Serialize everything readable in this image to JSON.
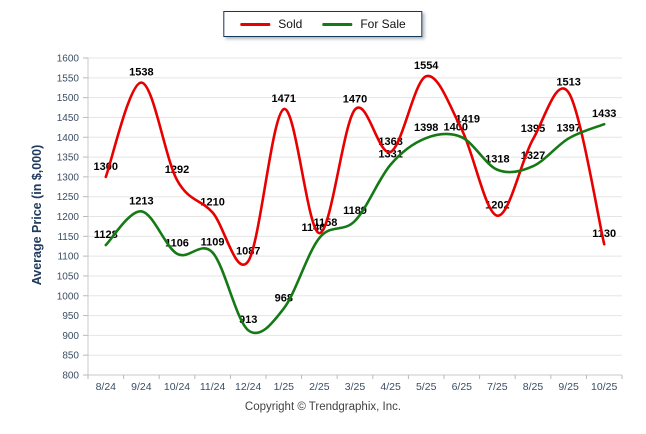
{
  "legend": {
    "items": [
      {
        "label": "Sold"
      },
      {
        "label": "For Sale"
      }
    ]
  },
  "chart_data": {
    "type": "line",
    "categories": [
      "8/24",
      "9/24",
      "10/24",
      "11/24",
      "12/24",
      "1/25",
      "2/25",
      "3/25",
      "4/25",
      "5/25",
      "6/25",
      "7/25",
      "8/25",
      "9/25",
      "10/25"
    ],
    "series": [
      {
        "name": "Sold",
        "color": "#e80000",
        "values": [
          1300,
          1538,
          1292,
          1210,
          1087,
          1471,
          1158,
          1470,
          1363,
          1554,
          1419,
          1202,
          1395,
          1513,
          1130
        ]
      },
      {
        "name": "For Sale",
        "color": "#157a15",
        "values": [
          1128,
          1213,
          1106,
          1109,
          913,
          968,
          1146,
          1189,
          1331,
          1398,
          1400,
          1318,
          1327,
          1397,
          1433
        ]
      }
    ],
    "title": "",
    "xlabel": "",
    "ylabel": "Average Price (in $,000)",
    "ylim": [
      800,
      1600
    ],
    "ytick_step": 50,
    "grid": true,
    "smooth": true,
    "legend_position": "top-center"
  },
  "footer": {
    "copyright": "Copyright © Trendgraphix, Inc."
  },
  "colors": {
    "sold_line": "#e80000",
    "for_sale_line": "#157a15",
    "grid_line": "#e5e5e5",
    "axis_line": "#c8c8c8",
    "tick_mark": "#b9b9b9",
    "tick_label": "#3b4d63",
    "data_label": "#000000",
    "legend_border": "#17365d"
  }
}
